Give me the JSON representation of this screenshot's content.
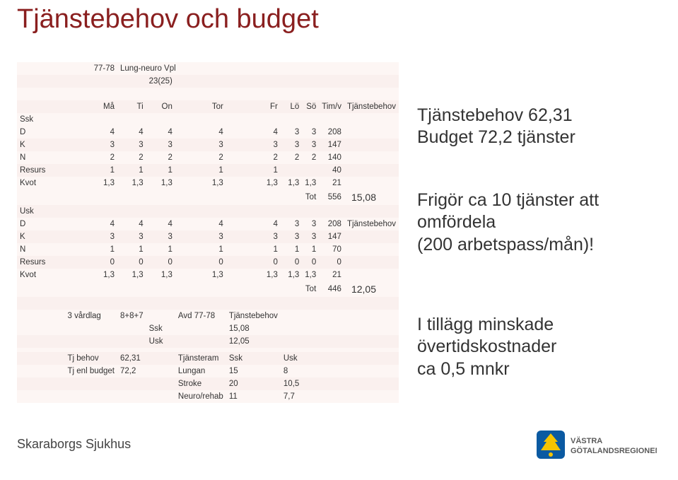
{
  "title": "Tjänstebehov och budget",
  "header_row1": {
    "c1": "77-78",
    "c2": "Lung-neuro Vpl"
  },
  "header_row2": {
    "c1": "23(25)"
  },
  "col_headers": [
    "Må",
    "Ti",
    "On",
    "Tor",
    "Fr",
    "Lö",
    "Sö",
    "Tim/v",
    "Tjänstebehov"
  ],
  "block1_label": "Ssk",
  "block1_rows": [
    {
      "label": "D",
      "vals": [
        "4",
        "4",
        "4",
        "4",
        "4",
        "3",
        "3",
        "208",
        ""
      ]
    },
    {
      "label": "K",
      "vals": [
        "3",
        "3",
        "3",
        "3",
        "3",
        "3",
        "3",
        "147",
        ""
      ]
    },
    {
      "label": "N",
      "vals": [
        "2",
        "2",
        "2",
        "2",
        "2",
        "2",
        "2",
        "140",
        ""
      ]
    },
    {
      "label": "Resurs",
      "vals": [
        "1",
        "1",
        "1",
        "1",
        "1",
        "",
        "",
        "40",
        ""
      ]
    },
    {
      "label": "Kvot",
      "vals": [
        "1,3",
        "1,3",
        "1,3",
        "1,3",
        "1,3",
        "1,3",
        "1,3",
        "21",
        ""
      ]
    }
  ],
  "block1_tot": {
    "label": "Tot",
    "val": "556",
    "extra": "15,08"
  },
  "block2_label": "Usk",
  "block2_rows": [
    {
      "label": "D",
      "vals": [
        "4",
        "4",
        "4",
        "4",
        "4",
        "3",
        "3",
        "208",
        "Tjänstebehov"
      ]
    },
    {
      "label": "K",
      "vals": [
        "3",
        "3",
        "3",
        "3",
        "3",
        "3",
        "3",
        "147",
        ""
      ]
    },
    {
      "label": "N",
      "vals": [
        "1",
        "1",
        "1",
        "1",
        "1",
        "1",
        "1",
        "70",
        ""
      ]
    },
    {
      "label": "Resurs",
      "vals": [
        "0",
        "0",
        "0",
        "0",
        "0",
        "0",
        "0",
        "0",
        ""
      ]
    },
    {
      "label": "Kvot",
      "vals": [
        "1,3",
        "1,3",
        "1,3",
        "1,3",
        "1,3",
        "1,3",
        "1,3",
        "21",
        ""
      ]
    }
  ],
  "block2_tot": {
    "label": "Tot",
    "val": "446",
    "extra": "12,05"
  },
  "summary_header": {
    "a": "3 vårdlag",
    "b": "8+8+7",
    "c": "Avd 77-78",
    "d": "Tjänstebehov"
  },
  "summary_rows": [
    {
      "cells": [
        "",
        "",
        "",
        "Ssk",
        "",
        "15,08",
        "",
        ""
      ]
    },
    {
      "cells": [
        "",
        "",
        "",
        "Usk",
        "",
        "12,05",
        "",
        ""
      ]
    },
    {
      "cells": [
        "",
        "",
        "",
        "",
        "",
        "",
        "",
        ""
      ]
    },
    {
      "cells": [
        "",
        "Tj behov",
        "62,31",
        "",
        "Tjänsteram",
        "Ssk",
        "Usk",
        ""
      ]
    },
    {
      "cells": [
        "",
        "Tj enl budget",
        "72,2",
        "",
        "Lungan",
        "15",
        "8",
        ""
      ]
    },
    {
      "cells": [
        "",
        "",
        "",
        "",
        "Stroke",
        "20",
        "10,5",
        ""
      ]
    },
    {
      "cells": [
        "",
        "",
        "",
        "",
        "Neuro/rehab",
        "11",
        "7,7",
        ""
      ]
    }
  ],
  "rt1": "Tjänstebehov 62,31\nBudget 72,2 tjänster",
  "rt2": "Frigör ca 10 tjänster att omfördela\n(200 arbetspass/mån)!",
  "rt3": "I tillägg minskade övertidskostnader\nca 0,5 mnkr",
  "footer": "Skaraborgs Sjukhus",
  "logo_text": "VÄSTRA\nGÖTALANDSREGIONEN",
  "colors": {
    "title": "#8a1f1f",
    "stripe1": "#fdf6f4",
    "stripe2": "#faf0ee",
    "logo_blue": "#0b5aa2",
    "logo_yellow": "#f6c400",
    "logo_text": "#5a5a5a"
  }
}
